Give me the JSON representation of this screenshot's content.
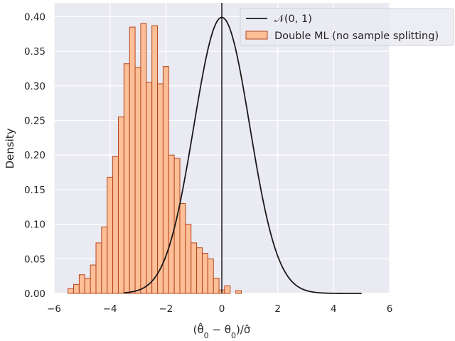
{
  "chart_data": {
    "type": "bar",
    "title": "",
    "xlabel": "(θ̂₀ − θ₀)/σ̂",
    "ylabel": "Density",
    "xlim": [
      -6,
      6
    ],
    "ylim": [
      0,
      0.42
    ],
    "xticks": [
      -6,
      -4,
      -2,
      0,
      2,
      4,
      6
    ],
    "xtick_labels": [
      "−6",
      "−4",
      "−2",
      "0",
      "2",
      "4",
      "6"
    ],
    "yticks": [
      0.0,
      0.05,
      0.1,
      0.15,
      0.2,
      0.25,
      0.3,
      0.35,
      0.4
    ],
    "ytick_labels": [
      "0.00",
      "0.05",
      "0.10",
      "0.15",
      "0.20",
      "0.25",
      "0.30",
      "0.35",
      "0.40"
    ],
    "grid": true,
    "legend_position": "top-right",
    "vertical_line_x": 0,
    "histogram": {
      "name": "Double ML (no sample splitting)",
      "bin_width": 0.2,
      "bin_starts": [
        -5.5,
        -5.3,
        -5.1,
        -4.9,
        -4.7,
        -4.5,
        -4.3,
        -4.1,
        -3.9,
        -3.7,
        -3.5,
        -3.3,
        -3.1,
        -2.9,
        -2.7,
        -2.5,
        -2.3,
        -2.1,
        -1.9,
        -1.7,
        -1.5,
        -1.3,
        -1.1,
        -0.9,
        -0.7,
        -0.5,
        -0.3,
        -0.1,
        0.1,
        0.3,
        0.5,
        0.7,
        0.9
      ],
      "densities": [
        0.007,
        0.013,
        0.027,
        0.022,
        0.041,
        0.073,
        0.096,
        0.168,
        0.198,
        0.255,
        0.332,
        0.385,
        0.327,
        0.39,
        0.305,
        0.387,
        0.303,
        0.328,
        0.2,
        0.195,
        0.13,
        0.1,
        0.073,
        0.066,
        0.058,
        0.05,
        0.022,
        0.005,
        0.011,
        0.0,
        0.004,
        0.0,
        0.0
      ],
      "fill_color": "#fdbf97",
      "edge_color": "#b5461c"
    },
    "curve": {
      "name": "𝒩(0, 1)",
      "type": "line",
      "function": "standard_normal_pdf",
      "x_range": [
        -3.5,
        5
      ],
      "color": "#1a1a1a"
    }
  }
}
